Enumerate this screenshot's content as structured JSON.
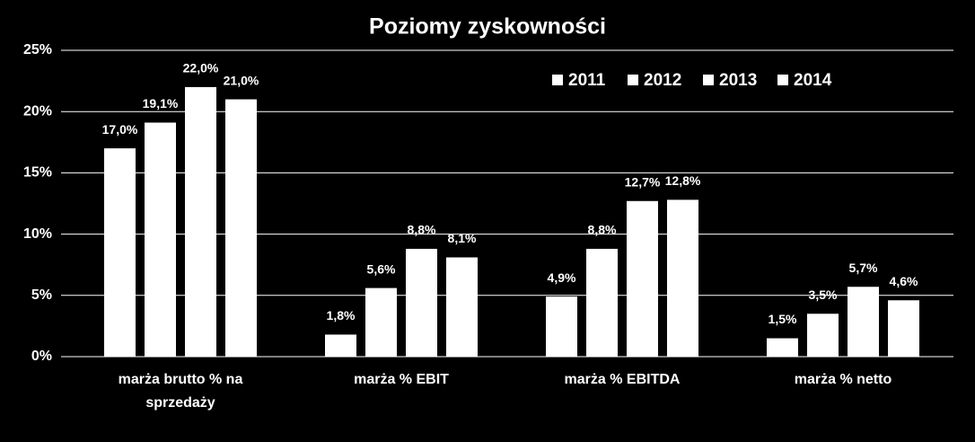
{
  "chart_data": {
    "type": "bar",
    "title": "Poziomy zyskowności",
    "categories": [
      "marża brutto % na sprzedaży",
      "marża % EBIT",
      "marża % EBITDA",
      "marża % netto"
    ],
    "series": [
      {
        "name": "2011",
        "color": "#ffffff",
        "values": [
          17.0,
          1.8,
          4.9,
          1.5
        ],
        "value_labels": [
          "17,0%",
          "1,8%",
          "4,9%",
          "1,5%"
        ]
      },
      {
        "name": "2012",
        "color": "#ffffff",
        "values": [
          19.1,
          5.6,
          8.8,
          3.5
        ],
        "value_labels": [
          "19,1%",
          "5,6%",
          "8,8%",
          "3,5%"
        ]
      },
      {
        "name": "2013",
        "color": "#ffffff",
        "values": [
          22.0,
          8.8,
          12.7,
          5.7
        ],
        "value_labels": [
          "22,0%",
          "8,8%",
          "12,7%",
          "5,7%"
        ]
      },
      {
        "name": "2014",
        "color": "#ffffff",
        "values": [
          21.0,
          8.1,
          12.8,
          4.6
        ],
        "value_labels": [
          "21,0%",
          "8,1%",
          "12,8%",
          "4,6%"
        ]
      }
    ],
    "ylim": [
      0,
      25
    ],
    "yticks": [
      {
        "value": 0,
        "label": "0%"
      },
      {
        "value": 5,
        "label": "5%"
      },
      {
        "value": 10,
        "label": "10%"
      },
      {
        "value": 15,
        "label": "15%"
      },
      {
        "value": 20,
        "label": "20%"
      },
      {
        "value": 25,
        "label": "25%"
      }
    ],
    "grid": true,
    "legend": "top-right"
  }
}
